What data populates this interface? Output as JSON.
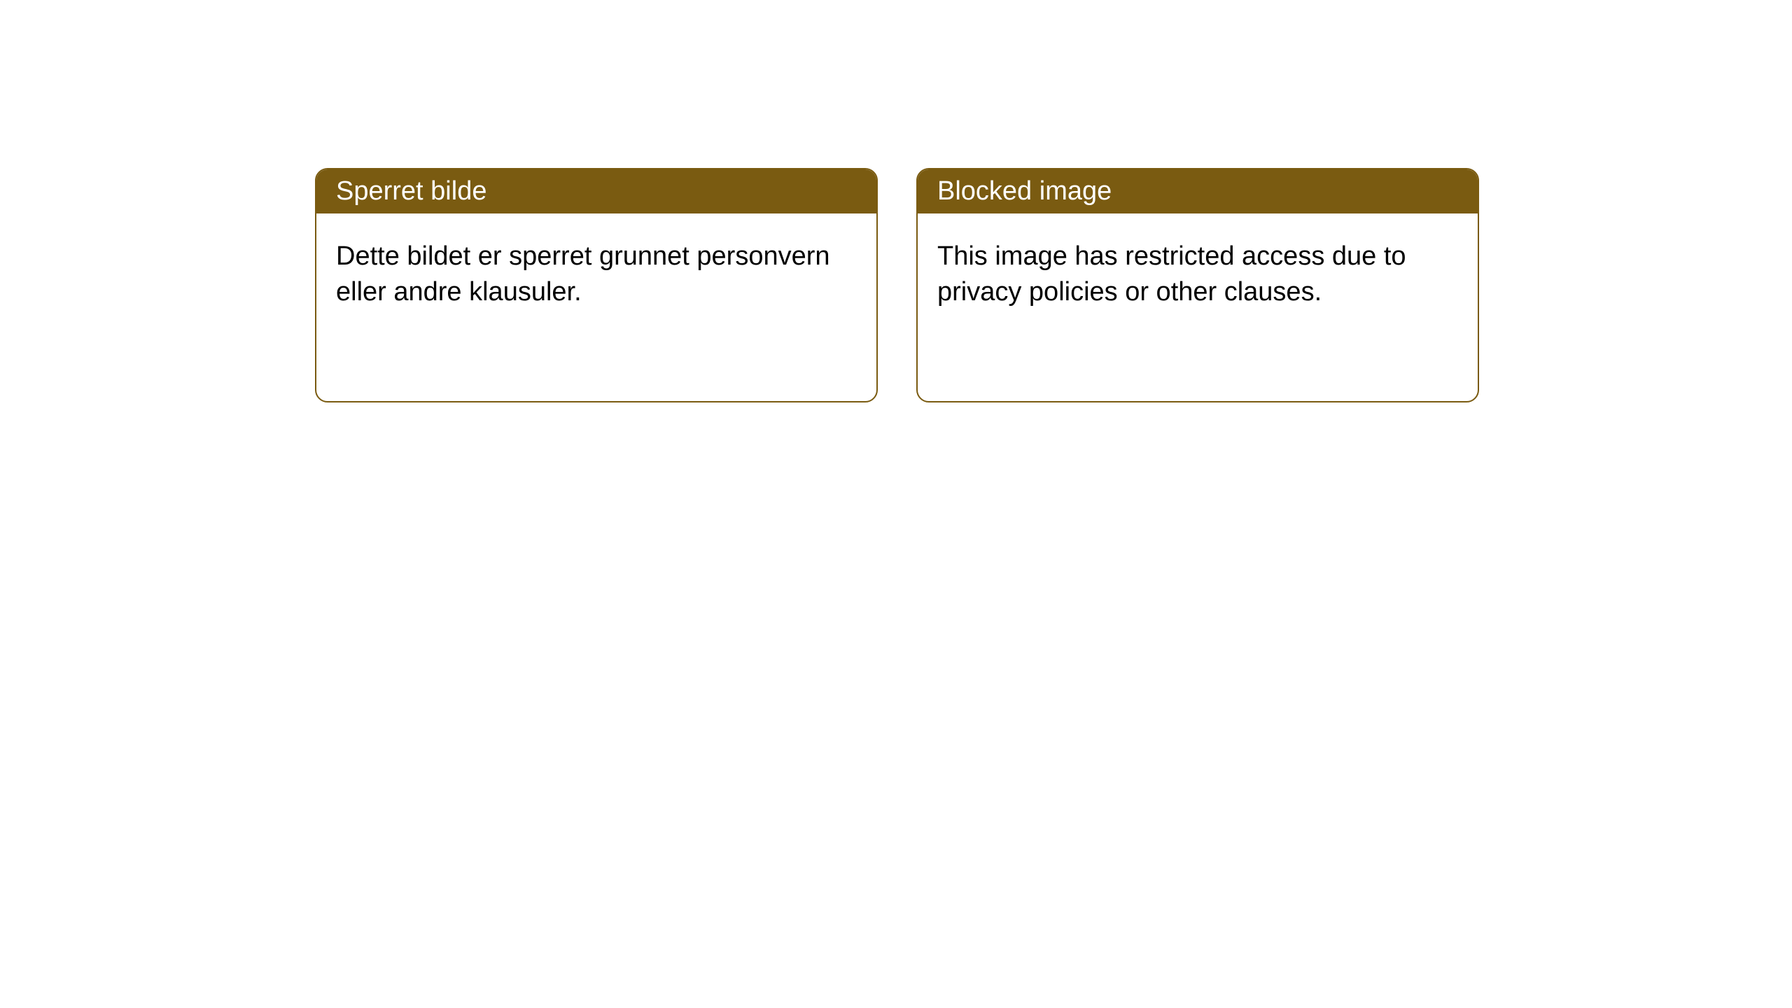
{
  "notices": [
    {
      "title": "Sperret bilde",
      "body": "Dette bildet er sperret grunnet personvern eller andre klausuler."
    },
    {
      "title": "Blocked image",
      "body": "This image has restricted access due to privacy policies or other clauses."
    }
  ],
  "colors": {
    "header_bg": "#7a5b11",
    "header_text": "#ffffff",
    "border": "#7a5b11",
    "body_bg": "#ffffff",
    "body_text": "#000000"
  }
}
